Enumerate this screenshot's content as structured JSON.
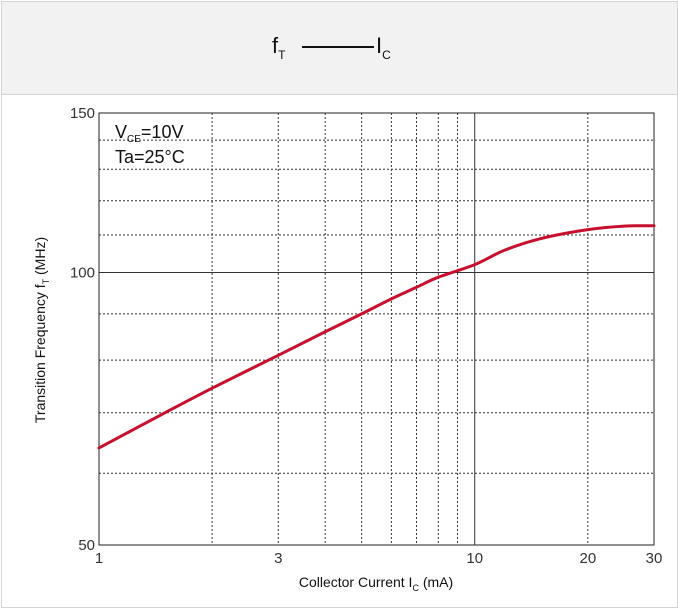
{
  "header": {
    "title_main": "f",
    "title_main_sub": "T",
    "title_dash": "———",
    "title_x": "I",
    "title_x_sub": "C"
  },
  "chart_data": {
    "type": "line",
    "title": "fT — IC",
    "annotations": {
      "vce_main": "V",
      "vce_sub": "CE",
      "vce_value": "=10V",
      "ta": "Ta=25°C"
    },
    "xlabel": {
      "main": "Collector Current  I",
      "sub": "C",
      "unit": " (mA)"
    },
    "ylabel": {
      "main": "Transition Frequency  f",
      "sub": "T",
      "unit": " (MHz)"
    },
    "x_scale": "log",
    "y_scale": "log",
    "xlim": [
      1,
      30
    ],
    "ylim": [
      50,
      150
    ],
    "x_ticks": [
      {
        "value": 1,
        "label": "1"
      },
      {
        "value": 3,
        "label": "3"
      },
      {
        "value": 10,
        "label": "10"
      },
      {
        "value": 20,
        "label": "20"
      },
      {
        "value": 30,
        "label": "30"
      }
    ],
    "y_ticks": [
      {
        "value": 50,
        "label": "50"
      },
      {
        "value": 100,
        "label": "100"
      },
      {
        "value": 150,
        "label": "150"
      }
    ],
    "x_minor_grid": [
      2,
      3,
      4,
      5,
      6,
      7,
      8,
      9,
      20
    ],
    "x_major_grid": [
      10
    ],
    "y_minor_grid": [
      60,
      70,
      80,
      90,
      110,
      120,
      130,
      140
    ],
    "y_major_grid": [
      100
    ],
    "grid": true,
    "colors": {
      "curve": "#c8102e",
      "grid": "#333333"
    },
    "series": [
      {
        "x": [
          1,
          1.5,
          2,
          3,
          4,
          5,
          6,
          7,
          8,
          10,
          12,
          15,
          20,
          25,
          30
        ],
        "y": [
          64,
          70,
          74.5,
          81,
          86,
          90,
          93.5,
          96.3,
          98.8,
          102,
          105.8,
          109,
          111.5,
          112.5,
          112.6
        ]
      }
    ]
  }
}
